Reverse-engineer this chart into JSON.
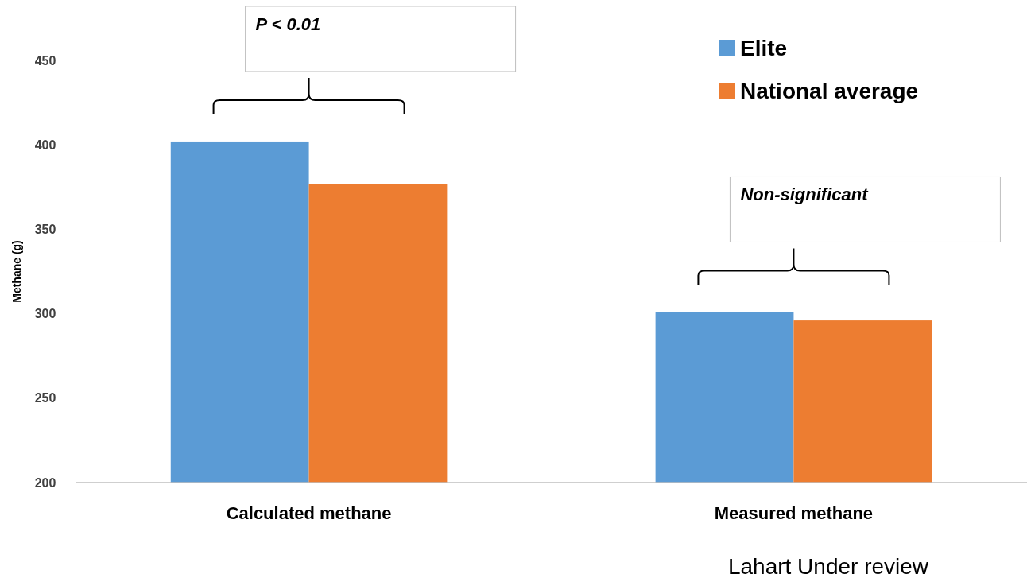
{
  "chart_data": {
    "type": "bar",
    "ylabel": "Methane (g)",
    "categories": [
      "Calculated methane",
      "Measured methane"
    ],
    "series": [
      {
        "name": "Elite",
        "color": "#5b9bd5",
        "values": [
          402,
          301
        ]
      },
      {
        "name": "National average",
        "color": "#ed7d31",
        "values": [
          377,
          296
        ]
      }
    ],
    "ylim": [
      200,
      450
    ],
    "yticks": [
      200,
      250,
      300,
      350,
      400,
      450
    ],
    "grid": false,
    "legend": "top right",
    "annotations": [
      "P < 0.01",
      "Non-significant",
      "Lahart Under review"
    ]
  }
}
